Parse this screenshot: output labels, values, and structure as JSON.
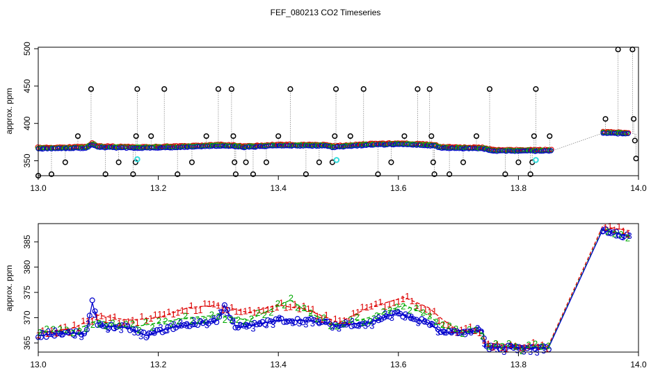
{
  "title": "FEF_080213  CO2 Timeseries",
  "chart_data": [
    {
      "type": "scatter",
      "ylabel": "approx. ppm",
      "xlim": [
        13.0,
        14.0
      ],
      "ylim": [
        330,
        502
      ],
      "x_ticks": [
        13.0,
        13.2,
        13.4,
        13.6,
        13.8,
        14.0
      ],
      "x_tick_labels": [
        "13.0",
        "13.2",
        "13.4",
        "13.6",
        "13.8",
        "14.0"
      ],
      "y_ticks": [
        350,
        400,
        450,
        500
      ],
      "y_tick_labels": [
        "350",
        "400",
        "450",
        "500"
      ],
      "series_colors": {
        "baseline": "#0000cc",
        "green": "#00bb00",
        "red": "#dd0000",
        "outlier": "#000000",
        "cyan": "#33dddd"
      },
      "baseline_segments": [
        [
          13.0,
          366
        ],
        [
          13.08,
          367
        ],
        [
          13.09,
          372
        ],
        [
          13.1,
          368
        ],
        [
          13.16,
          367
        ],
        [
          13.17,
          367
        ],
        [
          13.24,
          368
        ],
        [
          13.3,
          370
        ],
        [
          13.33,
          369
        ],
        [
          13.34,
          368
        ],
        [
          13.4,
          370
        ],
        [
          13.48,
          370
        ],
        [
          13.49,
          368
        ],
        [
          13.55,
          371
        ],
        [
          13.6,
          372
        ],
        [
          13.66,
          370
        ],
        [
          13.67,
          367
        ],
        [
          13.74,
          366
        ],
        [
          13.76,
          363
        ],
        [
          13.84,
          363
        ],
        [
          13.855,
          363
        ],
        [
          13.94,
          387
        ],
        [
          13.98,
          386
        ]
      ],
      "outliers": [
        [
          13.0,
          330
        ],
        [
          13.022,
          332
        ],
        [
          13.045,
          348
        ],
        [
          13.066,
          383
        ],
        [
          13.088,
          446
        ],
        [
          13.112,
          332
        ],
        [
          13.134,
          348
        ],
        [
          13.158,
          332
        ],
        [
          13.162,
          348
        ],
        [
          13.163,
          383
        ],
        [
          13.165,
          446
        ],
        [
          13.188,
          383
        ],
        [
          13.21,
          446
        ],
        [
          13.232,
          332
        ],
        [
          13.256,
          348
        ],
        [
          13.28,
          383
        ],
        [
          13.3,
          446
        ],
        [
          13.322,
          446
        ],
        [
          13.325,
          383
        ],
        [
          13.327,
          348
        ],
        [
          13.329,
          332
        ],
        [
          13.346,
          348
        ],
        [
          13.358,
          332
        ],
        [
          13.38,
          348
        ],
        [
          13.4,
          383
        ],
        [
          13.42,
          446
        ],
        [
          13.446,
          332
        ],
        [
          13.468,
          348
        ],
        [
          13.49,
          348
        ],
        [
          13.494,
          383
        ],
        [
          13.496,
          446
        ],
        [
          13.52,
          383
        ],
        [
          13.542,
          446
        ],
        [
          13.566,
          332
        ],
        [
          13.588,
          348
        ],
        [
          13.61,
          383
        ],
        [
          13.632,
          446
        ],
        [
          13.652,
          446
        ],
        [
          13.655,
          383
        ],
        [
          13.658,
          348
        ],
        [
          13.66,
          332
        ],
        [
          13.685,
          332
        ],
        [
          13.708,
          348
        ],
        [
          13.73,
          383
        ],
        [
          13.752,
          446
        ],
        [
          13.778,
          332
        ],
        [
          13.8,
          348
        ],
        [
          13.82,
          332
        ],
        [
          13.823,
          348
        ],
        [
          13.826,
          383
        ],
        [
          13.829,
          446
        ],
        [
          13.852,
          383
        ],
        [
          13.945,
          406
        ],
        [
          13.966,
          499
        ],
        [
          13.99,
          499
        ],
        [
          13.992,
          406
        ],
        [
          13.994,
          377
        ],
        [
          13.996,
          353
        ]
      ],
      "cyan_points": [
        [
          13.165,
          352
        ],
        [
          13.497,
          351
        ],
        [
          13.829,
          351
        ]
      ]
    },
    {
      "type": "scatter",
      "ylabel": "approx. ppm",
      "xlim": [
        13.0,
        14.0
      ],
      "ylim": [
        363.2,
        388.6
      ],
      "x_ticks": [
        13.0,
        13.2,
        13.4,
        13.6,
        13.8,
        14.0
      ],
      "x_tick_labels": [
        "13.0",
        "13.2",
        "13.4",
        "13.6",
        "13.8",
        "14.0"
      ],
      "y_ticks": [
        365,
        370,
        375,
        380,
        385
      ],
      "y_tick_labels": [
        "365",
        "370",
        "375",
        "380",
        "385"
      ],
      "marker_labels": [
        "1",
        "2",
        "3"
      ],
      "series": [
        {
          "marker": "1",
          "color": "#dd0000",
          "points": [
            [
              13.0,
              367
            ],
            [
              13.06,
              368
            ],
            [
              13.1,
              370.5
            ],
            [
              13.15,
              369.5
            ],
            [
              13.2,
              370
            ],
            [
              13.25,
              372
            ],
            [
              13.3,
              372.5
            ],
            [
              13.35,
              371
            ],
            [
              13.4,
              372.5
            ],
            [
              13.45,
              371.5
            ],
            [
              13.5,
              369
            ],
            [
              13.55,
              372
            ],
            [
              13.61,
              374
            ],
            [
              13.65,
              372
            ],
            [
              13.675,
              369.5
            ],
            [
              13.7,
              367.5
            ],
            [
              13.74,
              367.5
            ],
            [
              13.745,
              365
            ],
            [
              13.8,
              364.5
            ],
            [
              13.85,
              364.5
            ],
            [
              13.94,
              388
            ],
            [
              13.985,
              387.2
            ]
          ]
        },
        {
          "marker": "2",
          "color": "#00aa00",
          "points": [
            [
              13.0,
              367
            ],
            [
              13.06,
              367.5
            ],
            [
              13.1,
              369.5
            ],
            [
              13.15,
              368
            ],
            [
              13.2,
              369
            ],
            [
              13.25,
              370
            ],
            [
              13.3,
              370.5
            ],
            [
              13.35,
              369.5
            ],
            [
              13.42,
              373.5
            ],
            [
              13.45,
              371
            ],
            [
              13.5,
              368.5
            ],
            [
              13.55,
              370
            ],
            [
              13.61,
              372.5
            ],
            [
              13.65,
              370.5
            ],
            [
              13.675,
              368
            ],
            [
              13.7,
              367.5
            ],
            [
              13.74,
              367
            ],
            [
              13.745,
              364.5
            ],
            [
              13.8,
              364.2
            ],
            [
              13.85,
              364.2
            ],
            [
              13.94,
              387.5
            ],
            [
              13.985,
              386.3
            ]
          ]
        },
        {
          "marker": "3",
          "color": "#0000cc",
          "points": [
            [
              13.0,
              366.5
            ],
            [
              13.05,
              367
            ],
            [
              13.08,
              366.8
            ],
            [
              13.09,
              373
            ],
            [
              13.1,
              368.5
            ],
            [
              13.15,
              368
            ],
            [
              13.18,
              366.5
            ],
            [
              13.22,
              368
            ],
            [
              13.3,
              369.5
            ],
            [
              13.31,
              372.5
            ],
            [
              13.33,
              368
            ],
            [
              13.4,
              369.5
            ],
            [
              13.45,
              369.5
            ],
            [
              13.5,
              368.5
            ],
            [
              13.55,
              369
            ],
            [
              13.6,
              371
            ],
            [
              13.62,
              370
            ],
            [
              13.65,
              369
            ],
            [
              13.675,
              367
            ],
            [
              13.7,
              367
            ],
            [
              13.74,
              367.5
            ],
            [
              13.745,
              364.2
            ],
            [
              13.8,
              364
            ],
            [
              13.85,
              364
            ],
            [
              13.94,
              387.3
            ],
            [
              13.985,
              386
            ]
          ]
        }
      ]
    }
  ]
}
